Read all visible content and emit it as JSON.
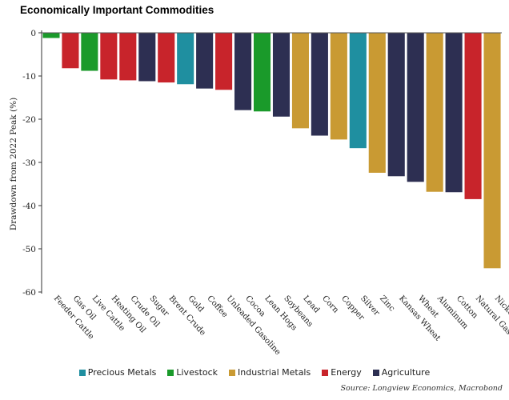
{
  "chart_data": {
    "type": "bar",
    "title": "Economically Important Commodities",
    "ylabel": "Drawdown from 2022 Peak (%)",
    "xlabel": "",
    "ylim": [
      -60,
      0
    ],
    "yticks": [
      0,
      -10,
      -20,
      -30,
      -40,
      -50,
      -60
    ],
    "grid": false,
    "legend_position": "bottom",
    "categories": [
      "Feeder Cattle",
      "Gas Oil",
      "Live Cattle",
      "Heating Oil",
      "Crude Oil",
      "Sugar",
      "Brent Crude",
      "Gold",
      "Coffee",
      "Unleaded Gasoline",
      "Cocoa",
      "Lean Hogs",
      "Soybeans",
      "Lead",
      "Corn",
      "Copper",
      "Silver",
      "Zinc",
      "Kansas Wheat",
      "Wheat",
      "Aluminum",
      "Cotton",
      "Natural Gas",
      "Nickel"
    ],
    "values": [
      -1.2,
      -8.2,
      -8.8,
      -10.8,
      -11.0,
      -11.2,
      -11.5,
      -11.9,
      -12.9,
      -13.2,
      -17.9,
      -18.2,
      -19.4,
      -22.1,
      -23.8,
      -24.7,
      -26.7,
      -32.4,
      -33.2,
      -34.5,
      -36.8,
      -36.9,
      -38.5,
      -54.5
    ],
    "groups": [
      "Livestock",
      "Energy",
      "Livestock",
      "Energy",
      "Energy",
      "Agriculture",
      "Energy",
      "Precious Metals",
      "Agriculture",
      "Energy",
      "Agriculture",
      "Livestock",
      "Agriculture",
      "Industrial Metals",
      "Agriculture",
      "Industrial Metals",
      "Precious Metals",
      "Industrial Metals",
      "Agriculture",
      "Agriculture",
      "Industrial Metals",
      "Agriculture",
      "Energy",
      "Industrial Metals"
    ],
    "legend": [
      {
        "name": "Precious Metals",
        "color": "#1f8fa0"
      },
      {
        "name": "Livestock",
        "color": "#1a9a2a"
      },
      {
        "name": "Industrial Metals",
        "color": "#c99a33"
      },
      {
        "name": "Energy",
        "color": "#c8242b"
      },
      {
        "name": "Agriculture",
        "color": "#2d2f52"
      }
    ],
    "source": "Source: Longview Economics, Macrobond"
  }
}
